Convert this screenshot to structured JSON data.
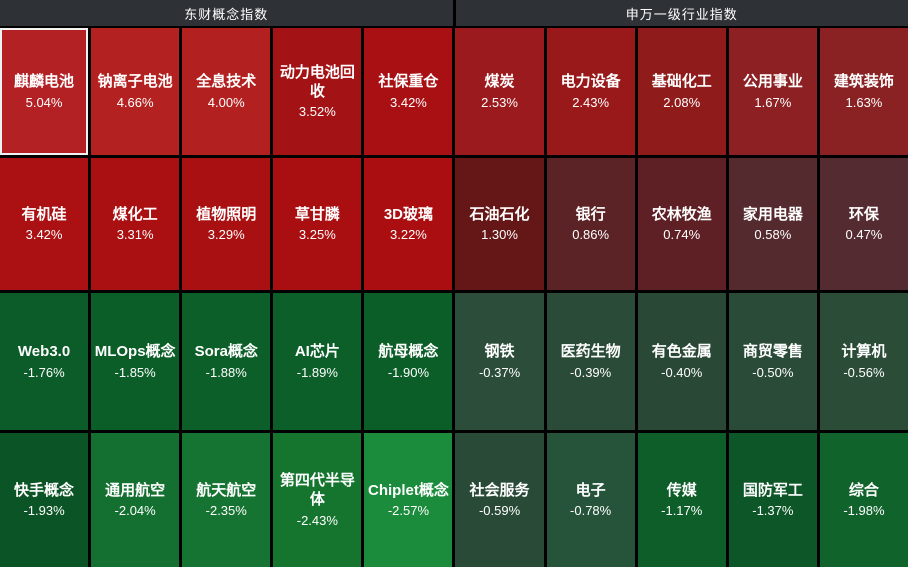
{
  "headers": {
    "left": "东财概念指数",
    "right": "申万一级行业指数"
  },
  "grid": {
    "cells": [
      {
        "name": "麒麟电池",
        "value": "5.04%",
        "color": "#b42125",
        "section": "东财概念指数",
        "highlighted": true
      },
      {
        "name": "钠离子电池",
        "value": "4.66%",
        "color": "#b32220",
        "section": "东财概念指数",
        "highlighted": false
      },
      {
        "name": "全息技术",
        "value": "4.00%",
        "color": "#b22020",
        "section": "东财概念指数",
        "highlighted": false
      },
      {
        "name": "动力电池回收",
        "value": "3.52%",
        "color": "#a31215",
        "section": "东财概念指数",
        "highlighted": false
      },
      {
        "name": "社保重仓",
        "value": "3.42%",
        "color": "#a91013",
        "section": "东财概念指数",
        "highlighted": false
      },
      {
        "name": "煤炭",
        "value": "2.53%",
        "color": "#9b1a1d",
        "section": "申万一级行业指数",
        "highlighted": false
      },
      {
        "name": "电力设备",
        "value": "2.43%",
        "color": "#99191b",
        "section": "申万一级行业指数",
        "highlighted": false
      },
      {
        "name": "基础化工",
        "value": "2.08%",
        "color": "#901b1b",
        "section": "申万一级行业指数",
        "highlighted": false
      },
      {
        "name": "公用事业",
        "value": "1.67%",
        "color": "#8c2022",
        "section": "申万一级行业指数",
        "highlighted": false
      },
      {
        "name": "建筑装饰",
        "value": "1.63%",
        "color": "#8a2123",
        "section": "申万一级行业指数",
        "highlighted": false
      },
      {
        "name": "有机硅",
        "value": "3.42%",
        "color": "#ab1112",
        "section": "东财概念指数",
        "highlighted": false
      },
      {
        "name": "煤化工",
        "value": "3.31%",
        "color": "#aa1011",
        "section": "东财概念指数",
        "highlighted": false
      },
      {
        "name": "植物照明",
        "value": "3.29%",
        "color": "#a91011",
        "section": "东财概念指数",
        "highlighted": false
      },
      {
        "name": "草甘膦",
        "value": "3.25%",
        "color": "#a90f10",
        "section": "东财概念指数",
        "highlighted": false
      },
      {
        "name": "3D玻璃",
        "value": "3.22%",
        "color": "#ab0e10",
        "section": "东财概念指数",
        "highlighted": false
      },
      {
        "name": "石油石化",
        "value": "1.30%",
        "color": "#651717",
        "section": "申万一级行业指数",
        "highlighted": false
      },
      {
        "name": "银行",
        "value": "0.86%",
        "color": "#5c2327",
        "section": "申万一级行业指数",
        "highlighted": false
      },
      {
        "name": "农林牧渔",
        "value": "0.74%",
        "color": "#5e2024",
        "section": "申万一级行业指数",
        "highlighted": false
      },
      {
        "name": "家用电器",
        "value": "0.58%",
        "color": "#552a2f",
        "section": "申万一级行业指数",
        "highlighted": false
      },
      {
        "name": "环保",
        "value": "0.47%",
        "color": "#542b30",
        "section": "申万一级行业指数",
        "highlighted": false
      },
      {
        "name": "Web3.0",
        "value": "-1.76%",
        "color": "#0b5c28",
        "section": "东财概念指数",
        "highlighted": false
      },
      {
        "name": "MLOps概念",
        "value": "-1.85%",
        "color": "#0c5e29",
        "section": "东财概念指数",
        "highlighted": false
      },
      {
        "name": "Sora概念",
        "value": "-1.88%",
        "color": "#0d5f2a",
        "section": "东财概念指数",
        "highlighted": false
      },
      {
        "name": "AI芯片",
        "value": "-1.89%",
        "color": "#0d5f2a",
        "section": "东财概念指数",
        "highlighted": false
      },
      {
        "name": "航母概念",
        "value": "-1.90%",
        "color": "#0c5e29",
        "section": "东财概念指数",
        "highlighted": false
      },
      {
        "name": "钢铁",
        "value": "-0.37%",
        "color": "#2b4d39",
        "section": "申万一级行业指数",
        "highlighted": false
      },
      {
        "name": "医药生物",
        "value": "-0.39%",
        "color": "#2a4b37",
        "section": "申万一级行业指数",
        "highlighted": false
      },
      {
        "name": "有色金属",
        "value": "-0.40%",
        "color": "#294936",
        "section": "申万一级行业指数",
        "highlighted": false
      },
      {
        "name": "商贸零售",
        "value": "-0.50%",
        "color": "#2a4b37",
        "section": "申万一级行业指数",
        "highlighted": false
      },
      {
        "name": "计算机",
        "value": "-0.56%",
        "color": "#2b4d38",
        "section": "申万一级行业指数",
        "highlighted": false
      },
      {
        "name": "快手概念",
        "value": "-1.93%",
        "color": "#0b5425",
        "section": "东财概念指数",
        "highlighted": false
      },
      {
        "name": "通用航空",
        "value": "-2.04%",
        "color": "#147030",
        "section": "东财概念指数",
        "highlighted": false
      },
      {
        "name": "航天航空",
        "value": "-2.35%",
        "color": "#157431",
        "section": "东财概念指数",
        "highlighted": false
      },
      {
        "name": "第四代半导体",
        "value": "-2.43%",
        "color": "#15752f",
        "section": "东财概念指数",
        "highlighted": false
      },
      {
        "name": "Chiplet概念",
        "value": "-2.57%",
        "color": "#1b8c3c",
        "section": "东财概念指数",
        "highlighted": false
      },
      {
        "name": "社会服务",
        "value": "-0.59%",
        "color": "#2a4a38",
        "section": "申万一级行业指数",
        "highlighted": false
      },
      {
        "name": "电子",
        "value": "-0.78%",
        "color": "#26543a",
        "section": "申万一级行业指数",
        "highlighted": false
      },
      {
        "name": "传媒",
        "value": "-1.17%",
        "color": "#0e5e2a",
        "section": "申万一级行业指数",
        "highlighted": false
      },
      {
        "name": "国防军工",
        "value": "-1.37%",
        "color": "#0c5627",
        "section": "申万一级行业指数",
        "highlighted": false
      },
      {
        "name": "综合",
        "value": "-1.98%",
        "color": "#11632c",
        "section": "申万一级行业指数",
        "highlighted": false
      }
    ]
  },
  "chart_data": {
    "type": "heatmap",
    "layout": "4 rows x 10 columns; columns 1-5 = left group, columns 6-10 = right group; rows sorted by change descending",
    "color_rule": "red = gain, green = loss; brighter color = larger absolute change; near-zero values muted dark",
    "groups": [
      {
        "name": "东财概念指数",
        "items": [
          {
            "label": "麒麟电池",
            "pct": 5.04
          },
          {
            "label": "钠离子电池",
            "pct": 4.66
          },
          {
            "label": "全息技术",
            "pct": 4.0
          },
          {
            "label": "动力电池回收",
            "pct": 3.52
          },
          {
            "label": "社保重仓",
            "pct": 3.42
          },
          {
            "label": "有机硅",
            "pct": 3.42
          },
          {
            "label": "煤化工",
            "pct": 3.31
          },
          {
            "label": "植物照明",
            "pct": 3.29
          },
          {
            "label": "草甘膦",
            "pct": 3.25
          },
          {
            "label": "3D玻璃",
            "pct": 3.22
          },
          {
            "label": "Web3.0",
            "pct": -1.76
          },
          {
            "label": "MLOps概念",
            "pct": -1.85
          },
          {
            "label": "Sora概念",
            "pct": -1.88
          },
          {
            "label": "AI芯片",
            "pct": -1.89
          },
          {
            "label": "航母概念",
            "pct": -1.9
          },
          {
            "label": "快手概念",
            "pct": -1.93
          },
          {
            "label": "通用航空",
            "pct": -2.04
          },
          {
            "label": "航天航空",
            "pct": -2.35
          },
          {
            "label": "第四代半导体",
            "pct": -2.43
          },
          {
            "label": "Chiplet概念",
            "pct": -2.57
          }
        ]
      },
      {
        "name": "申万一级行业指数",
        "items": [
          {
            "label": "煤炭",
            "pct": 2.53
          },
          {
            "label": "电力设备",
            "pct": 2.43
          },
          {
            "label": "基础化工",
            "pct": 2.08
          },
          {
            "label": "公用事业",
            "pct": 1.67
          },
          {
            "label": "建筑装饰",
            "pct": 1.63
          },
          {
            "label": "石油石化",
            "pct": 1.3
          },
          {
            "label": "银行",
            "pct": 0.86
          },
          {
            "label": "农林牧渔",
            "pct": 0.74
          },
          {
            "label": "家用电器",
            "pct": 0.58
          },
          {
            "label": "环保",
            "pct": 0.47
          },
          {
            "label": "钢铁",
            "pct": -0.37
          },
          {
            "label": "医药生物",
            "pct": -0.39
          },
          {
            "label": "有色金属",
            "pct": -0.4
          },
          {
            "label": "商贸零售",
            "pct": -0.5
          },
          {
            "label": "计算机",
            "pct": -0.56
          },
          {
            "label": "社会服务",
            "pct": -0.59
          },
          {
            "label": "电子",
            "pct": -0.78
          },
          {
            "label": "传媒",
            "pct": -1.17
          },
          {
            "label": "国防军工",
            "pct": -1.37
          },
          {
            "label": "综合",
            "pct": -1.98
          }
        ]
      }
    ]
  }
}
